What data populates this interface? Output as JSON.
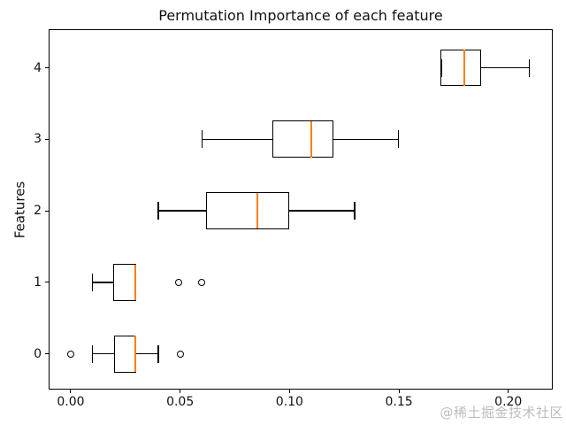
{
  "chart_data": {
    "type": "boxplot",
    "orientation": "horizontal",
    "title": "Permutation Importance of each feature",
    "xlabel": "",
    "ylabel": "Features",
    "xlim": [
      -0.0101,
      0.2203
    ],
    "ylim": [
      -0.5,
      4.54
    ],
    "x_ticks": [
      0,
      0.05,
      0.1,
      0.15,
      0.2
    ],
    "x_tick_labels": [
      "0.00",
      "0.05",
      "0.10",
      "0.15",
      "0.20"
    ],
    "y_ticks": [
      0,
      1,
      2,
      3,
      4
    ],
    "y_tick_labels": [
      "0",
      "1",
      "2",
      "3",
      "4"
    ],
    "grid": false,
    "box_width": 0.5,
    "cap_width": 0.25,
    "colors": {
      "box_edge": "#000000",
      "median": "#ff7f0e",
      "background": "#ffffff"
    },
    "boxes": [
      {
        "feature": "0",
        "position": 0,
        "whisker_low": 0.01,
        "q1": 0.02,
        "median": 0.0295,
        "q3": 0.0295,
        "whisker_high": 0.04,
        "outliers": [
          0.0,
          0.05
        ]
      },
      {
        "feature": "1",
        "position": 1,
        "whisker_low": 0.01,
        "q1": 0.0195,
        "median": 0.0295,
        "q3": 0.0295,
        "whisker_high": 0.0295,
        "outliers": [
          0.0495,
          0.06
        ]
      },
      {
        "feature": "2",
        "position": 2,
        "whisker_low": 0.04,
        "q1": 0.0622,
        "median": 0.0851,
        "q3": 0.0997,
        "whisker_high": 0.1297,
        "outliers": []
      },
      {
        "feature": "3",
        "position": 3,
        "whisker_low": 0.06,
        "q1": 0.0925,
        "median": 0.1098,
        "q3": 0.1197,
        "whisker_high": 0.1498,
        "outliers": []
      },
      {
        "feature": "4",
        "position": 4,
        "whisker_low": 0.1693,
        "q1": 0.1693,
        "median": 0.1799,
        "q3": 0.1871,
        "whisker_high": 0.2097,
        "outliers": []
      }
    ]
  },
  "watermark": {
    "text": "@稀土掘金技术社区",
    "color": "#bdbdbd"
  }
}
